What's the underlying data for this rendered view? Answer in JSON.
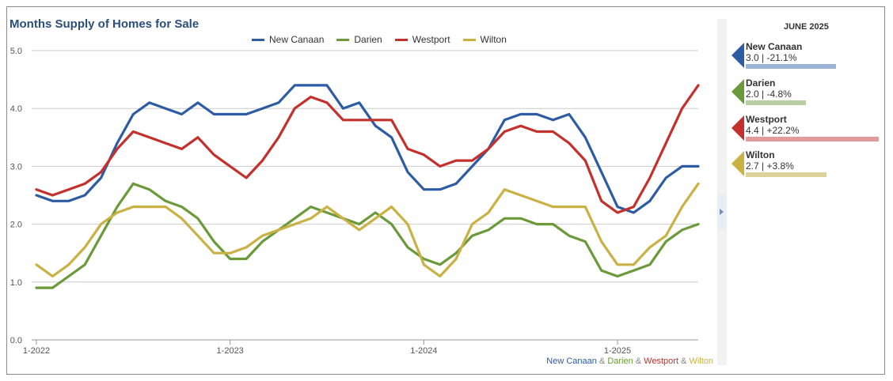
{
  "chart_data": {
    "type": "line",
    "title": "Months Supply of Homes for Sale",
    "xlabel": "",
    "ylabel": "",
    "ylim": [
      0,
      5
    ],
    "yticks": [
      "0.0",
      "1.0",
      "2.0",
      "3.0",
      "4.0",
      "5.0"
    ],
    "xticks": [
      {
        "label": "1-2022",
        "index": 0
      },
      {
        "label": "1-2023",
        "index": 12
      },
      {
        "label": "1-2024",
        "index": 24
      },
      {
        "label": "1-2025",
        "index": 36
      }
    ],
    "grid": true,
    "legend_position": "top-center",
    "series": [
      {
        "name": "New Canaan",
        "color": "#2d5ca4",
        "values": [
          2.5,
          2.4,
          2.4,
          2.5,
          2.8,
          3.4,
          3.9,
          4.1,
          4.0,
          3.9,
          4.1,
          3.9,
          3.9,
          3.9,
          4.0,
          4.1,
          4.4,
          4.4,
          4.4,
          4.0,
          4.1,
          3.7,
          3.5,
          2.9,
          2.6,
          2.6,
          2.7,
          3.0,
          3.3,
          3.8,
          3.9,
          3.9,
          3.8,
          3.9,
          3.5,
          2.9,
          2.3,
          2.2,
          2.4,
          2.8,
          3.0,
          3.0
        ]
      },
      {
        "name": "Darien",
        "color": "#6b9a3a",
        "values": [
          0.9,
          0.9,
          1.1,
          1.3,
          1.8,
          2.3,
          2.7,
          2.6,
          2.4,
          2.3,
          2.1,
          1.7,
          1.4,
          1.4,
          1.7,
          1.9,
          2.1,
          2.3,
          2.2,
          2.1,
          2.0,
          2.2,
          2.0,
          1.6,
          1.4,
          1.3,
          1.5,
          1.8,
          1.9,
          2.1,
          2.1,
          2.0,
          2.0,
          1.8,
          1.7,
          1.2,
          1.1,
          1.2,
          1.3,
          1.7,
          1.9,
          2.0
        ]
      },
      {
        "name": "Westport",
        "color": "#c4302b",
        "values": [
          2.6,
          2.5,
          2.6,
          2.7,
          2.9,
          3.3,
          3.6,
          3.5,
          3.4,
          3.3,
          3.5,
          3.2,
          3.0,
          2.8,
          3.1,
          3.5,
          4.0,
          4.2,
          4.1,
          3.8,
          3.8,
          3.8,
          3.8,
          3.3,
          3.2,
          3.0,
          3.1,
          3.1,
          3.3,
          3.6,
          3.7,
          3.6,
          3.6,
          3.4,
          3.1,
          2.4,
          2.2,
          2.3,
          2.8,
          3.4,
          4.0,
          4.4
        ]
      },
      {
        "name": "Wilton",
        "color": "#c9b243",
        "values": [
          1.3,
          1.1,
          1.3,
          1.6,
          2.0,
          2.2,
          2.3,
          2.3,
          2.3,
          2.1,
          1.8,
          1.5,
          1.5,
          1.6,
          1.8,
          1.9,
          2.0,
          2.1,
          2.3,
          2.1,
          1.9,
          2.1,
          2.3,
          2.0,
          1.3,
          1.1,
          1.4,
          2.0,
          2.2,
          2.6,
          2.5,
          2.4,
          2.3,
          2.3,
          2.3,
          1.7,
          1.3,
          1.3,
          1.6,
          1.8,
          2.3,
          2.7
        ]
      }
    ],
    "source_note": [
      {
        "text": "New Canaan",
        "color": "#2d5ca4"
      },
      {
        "text": " & ",
        "color": "#888888"
      },
      {
        "text": "Darien",
        "color": "#6b9a3a"
      },
      {
        "text": " & ",
        "color": "#888888"
      },
      {
        "text": "Westport",
        "color": "#c4302b"
      },
      {
        "text": " & ",
        "color": "#888888"
      },
      {
        "text": "Wilton",
        "color": "#c9b243"
      }
    ]
  },
  "panel": {
    "title": "JUNE 2025",
    "cards": [
      {
        "name": "New Canaan",
        "value": "3.0 | -21.1%",
        "color": "#2d5ca4",
        "bar_color": "#9bb3d6",
        "bar_fraction": 0.68
      },
      {
        "name": "Darien",
        "value": "2.0 | -4.8%",
        "color": "#6b9a3a",
        "bar_color": "#b8cfa3",
        "bar_fraction": 0.45
      },
      {
        "name": "Westport",
        "value": "4.4 | +22.2%",
        "color": "#c4302b",
        "bar_color": "#e39a9a",
        "bar_fraction": 1.0
      },
      {
        "name": "Wilton",
        "value": "2.7 | +3.8%",
        "color": "#c9b243",
        "bar_color": "#ddd29a",
        "bar_fraction": 0.61
      }
    ]
  }
}
